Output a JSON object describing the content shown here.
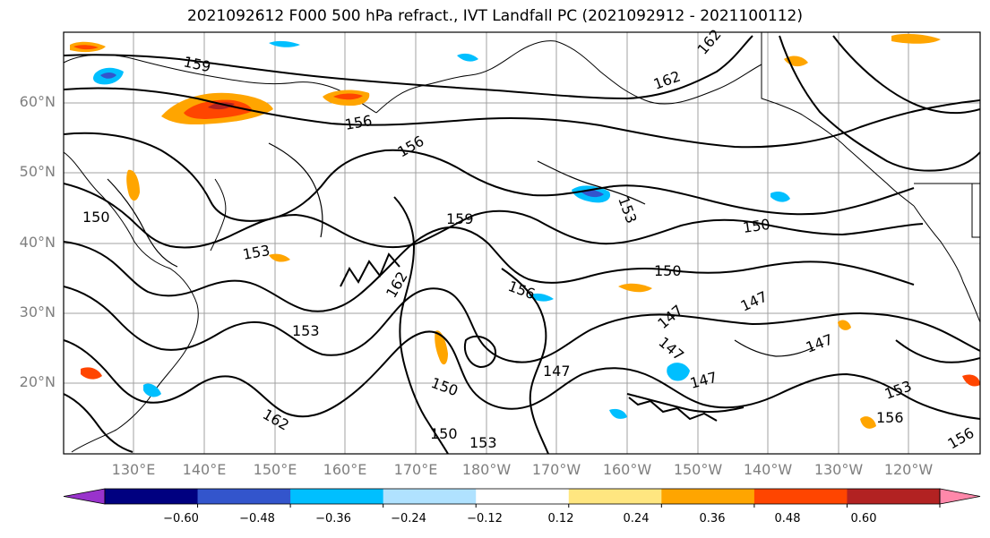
{
  "title": "2021092612 F000 500 hPa refract., IVT Landfall PC (2021092912 - 2021100112)",
  "map": {
    "lat_labels": [
      "60°N",
      "50°N",
      "40°N",
      "30°N",
      "20°N"
    ],
    "lon_labels": [
      "130°E",
      "140°E",
      "150°E",
      "160°E",
      "170°E",
      "180°W",
      "170°W",
      "160°W",
      "150°W",
      "140°W",
      "130°W",
      "120°W"
    ],
    "contour_labels": [
      "159",
      "162",
      "162",
      "156",
      "156",
      "150",
      "150",
      "159",
      "153",
      "153",
      "150",
      "147",
      "147",
      "147",
      "147",
      "153",
      "150",
      "153",
      "156",
      "147",
      "162",
      "153",
      "156",
      "150",
      "147",
      "162",
      "156"
    ],
    "line_color": "#000000",
    "grid_color": "#a0a0a0",
    "coastline_color": "#000000"
  },
  "colorbar": {
    "colors": [
      "#9933cc",
      "#000080",
      "#3355cc",
      "#00bfff",
      "#b0e2ff",
      "#ffffff",
      "#ffe680",
      "#ffa500",
      "#ff4500",
      "#b22222",
      "#ff88aa"
    ],
    "tick_labels": [
      "−0.60",
      "−0.48",
      "−0.36",
      "−0.24",
      "−0.12",
      "0.12",
      "0.24",
      "0.36",
      "0.48",
      "0.60"
    ],
    "tick_values": [
      -0.6,
      -0.48,
      -0.36,
      -0.24,
      -0.12,
      0.12,
      0.24,
      0.36,
      0.48,
      0.6
    ]
  }
}
